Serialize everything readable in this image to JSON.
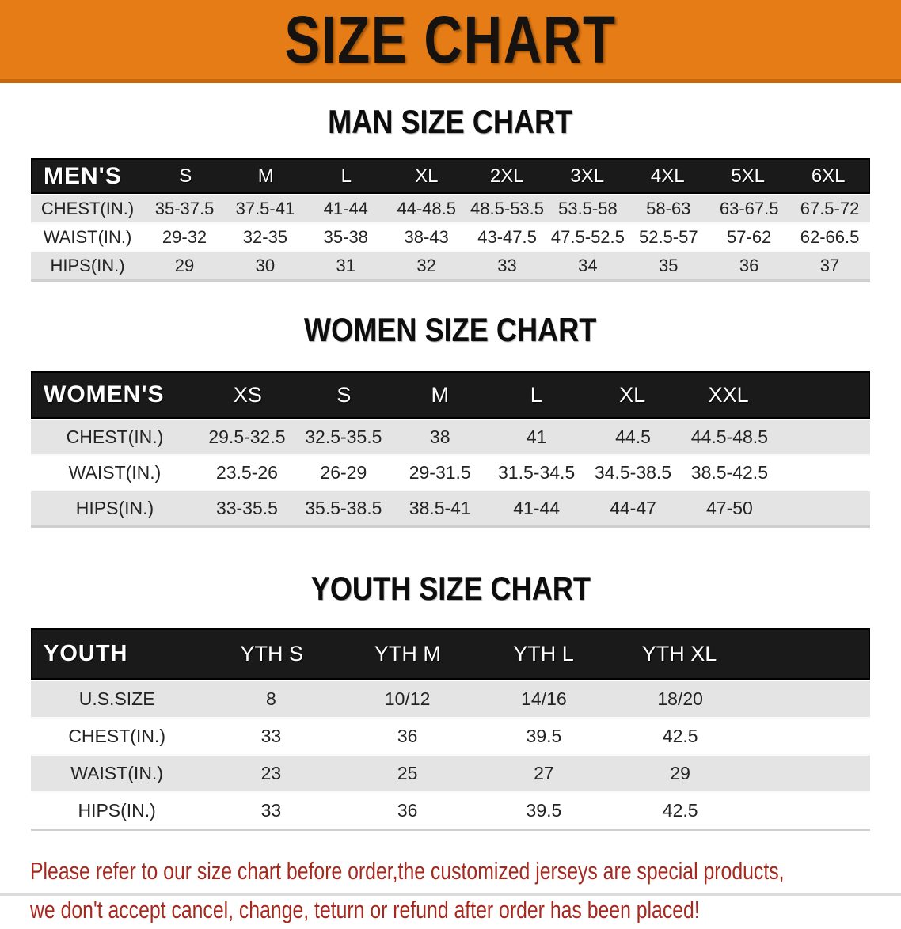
{
  "banner": {
    "title": "SIZE CHART"
  },
  "colors": {
    "banner_bg": "#E67C15",
    "banner_border": "#C8680D",
    "header_bg": "#1A1A1A",
    "row_gray": "#E4E4E4",
    "footer_red": "#A5291E"
  },
  "sections": [
    {
      "heading": "MAN SIZE CHART",
      "table": {
        "label": "MEN'S",
        "columns": [
          "S",
          "M",
          "L",
          "XL",
          "2XL",
          "3XL",
          "4XL",
          "5XL",
          "6XL"
        ],
        "rows": [
          {
            "label": "CHEST(IN.)",
            "values": [
              "35-37.5",
              "37.5-41",
              "41-44",
              "44-48.5",
              "48.5-53.5",
              "53.5-58",
              "58-63",
              "63-67.5",
              "67.5-72"
            ]
          },
          {
            "label": "WAIST(IN.)",
            "values": [
              "29-32",
              "32-35",
              "35-38",
              "38-43",
              "43-47.5",
              "47.5-52.5",
              "52.5-57",
              "57-62",
              "62-66.5"
            ]
          },
          {
            "label": "HIPS(IN.)",
            "values": [
              "29",
              "30",
              "31",
              "32",
              "33",
              "34",
              "35",
              "36",
              "37"
            ]
          }
        ]
      }
    },
    {
      "heading": "WOMEN SIZE CHART",
      "table": {
        "label": "WOMEN'S",
        "columns": [
          "XS",
          "S",
          "M",
          "L",
          "XL",
          "XXL"
        ],
        "rows": [
          {
            "label": "CHEST(IN.)",
            "values": [
              "29.5-32.5",
              "32.5-35.5",
              "38",
              "41",
              "44.5",
              "44.5-48.5"
            ]
          },
          {
            "label": "WAIST(IN.)",
            "values": [
              "23.5-26",
              "26-29",
              "29-31.5",
              "31.5-34.5",
              "34.5-38.5",
              "38.5-42.5"
            ]
          },
          {
            "label": "HIPS(IN.)",
            "values": [
              "33-35.5",
              "35.5-38.5",
              "38.5-41",
              "41-44",
              "44-47",
              "47-50"
            ]
          }
        ]
      }
    },
    {
      "heading": "YOUTH SIZE CHART",
      "table": {
        "label": "YOUTH",
        "columns": [
          "YTH S",
          "YTH M",
          "YTH L",
          "YTH XL"
        ],
        "rows": [
          {
            "label": "U.S.SIZE",
            "values": [
              "8",
              "10/12",
              "14/16",
              "18/20"
            ]
          },
          {
            "label": "CHEST(IN.)",
            "values": [
              "33",
              "36",
              "39.5",
              "42.5"
            ]
          },
          {
            "label": "WAIST(IN.)",
            "values": [
              "23",
              "25",
              "27",
              "29"
            ]
          },
          {
            "label": "HIPS(IN.)",
            "values": [
              "33",
              "36",
              "39.5",
              "42.5"
            ]
          }
        ]
      }
    }
  ],
  "footer": {
    "line1": "Please refer to our size chart before order,the customized jerseys are special products,",
    "line2": "we don't accept cancel, change, teturn or refund after order has been placed!"
  }
}
